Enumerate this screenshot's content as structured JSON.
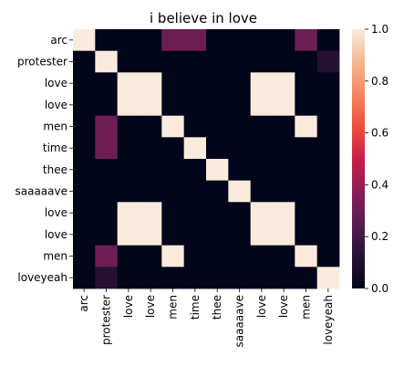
{
  "chart_data": {
    "type": "heatmap",
    "title": "i believe in love",
    "xlabel": "",
    "ylabel": "",
    "tokens": [
      "arc",
      "protester",
      "love",
      "love",
      "men",
      "time",
      "thee",
      "saaaaave",
      "love",
      "love",
      "men",
      "loveyeah"
    ],
    "row_tokens": [
      "arc",
      "protester",
      "love",
      "love",
      "men",
      "time",
      "thee",
      "saaaaave",
      "love",
      "love",
      "men",
      "loveyeah"
    ],
    "row_labels": [
      "arc",
      "protester",
      "love",
      "love",
      "men",
      "time",
      "thee",
      "saaaaave",
      "love",
      "love",
      "men",
      "loveyeah"
    ],
    "col_labels": [
      "arc",
      "protester",
      "love",
      "love",
      "men",
      "time",
      "thee",
      "saaaaave",
      "love",
      "love",
      "men",
      "loveyeah"
    ],
    "zlim": [
      0,
      1
    ],
    "colorbar_ticks": [
      0.0,
      0.2,
      0.4,
      0.6,
      0.8,
      1.0
    ],
    "colorbar_tick_labels": [
      "0.0",
      "0.2",
      "0.4",
      "0.6",
      "0.8",
      "1.0"
    ],
    "colormap": "rocket",
    "special_cells": [
      {
        "row": 0,
        "col": 0,
        "value": 1.0
      },
      {
        "row": 1,
        "col": 1,
        "value": 1.0
      },
      {
        "row": 0,
        "col": 4,
        "value": 0.3
      },
      {
        "row": 0,
        "col": 5,
        "value": 0.3
      },
      {
        "row": 0,
        "col": 10,
        "value": 0.3
      },
      {
        "row": 1,
        "col": 11,
        "value": 0.12
      },
      {
        "row": 4,
        "col": 1,
        "value": 0.3
      },
      {
        "row": 5,
        "col": 1,
        "value": 0.3
      },
      {
        "row": 10,
        "col": 1,
        "value": 0.3
      },
      {
        "row": 11,
        "col": 1,
        "value": 0.12
      }
    ],
    "grid": false,
    "legend": "none"
  }
}
